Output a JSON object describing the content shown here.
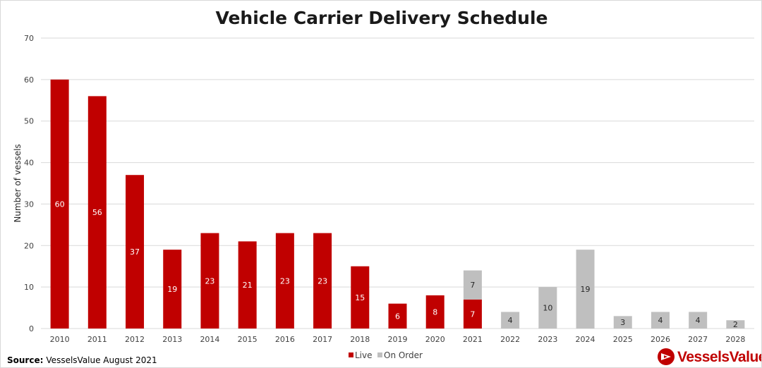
{
  "colors": {
    "live": "#c00000",
    "on_order": "#bfbfbf",
    "grid": "#d9d9d9",
    "brand": "#c00000"
  },
  "source": {
    "label": "Source:",
    "text": "VesselsValue August 2021"
  },
  "brand": {
    "name": "VesselsValue",
    "icon": "vesselsvalue-logo-icon"
  },
  "chart_data": {
    "type": "bar",
    "stacked": true,
    "title": "Vehicle Carrier Delivery Schedule",
    "xlabel": "",
    "ylabel": "Number of vessels",
    "ylim": [
      0,
      70
    ],
    "yticks": [
      0,
      10,
      20,
      30,
      40,
      50,
      60,
      70
    ],
    "grid": true,
    "legend_position": "bottom",
    "categories": [
      "2010",
      "2011",
      "2012",
      "2013",
      "2014",
      "2015",
      "2016",
      "2017",
      "2018",
      "2019",
      "2020",
      "2021",
      "2022",
      "2023",
      "2024",
      "2025",
      "2026",
      "2027",
      "2028"
    ],
    "series": [
      {
        "name": "Live",
        "color": "#c00000",
        "values": [
          60,
          56,
          37,
          19,
          23,
          21,
          23,
          23,
          15,
          6,
          8,
          7,
          0,
          0,
          0,
          0,
          0,
          0,
          0
        ]
      },
      {
        "name": "On Order",
        "color": "#bfbfbf",
        "values": [
          0,
          0,
          0,
          0,
          0,
          0,
          0,
          0,
          0,
          0,
          0,
          7,
          4,
          10,
          19,
          3,
          4,
          4,
          2
        ]
      }
    ]
  }
}
